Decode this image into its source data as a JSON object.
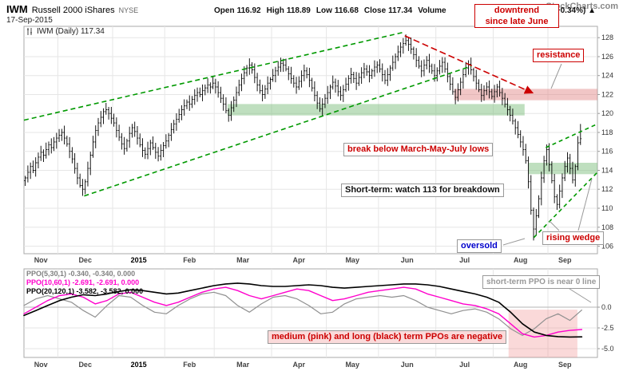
{
  "header": {
    "symbol": "IWM",
    "name": "Russell 2000 iShares",
    "exchange": "NYSE",
    "date": "17-Sep-2015",
    "watermark": "StockCharts.com",
    "quote": {
      "open_label": "Open",
      "open": "116.92",
      "high_label": "High",
      "high": "118.89",
      "low_label": "Low",
      "low": "116.68",
      "close_label": "Close",
      "close": "117.34",
      "volume_label": "Volume",
      "chg_pct": "(+0.34%)",
      "chg_arrow": "▲"
    }
  },
  "price_panel": {
    "label": "IWM (Daily) 117.34",
    "y_ticks": [
      128,
      126,
      124,
      122,
      120,
      118,
      116,
      114,
      112,
      110,
      108,
      106
    ]
  },
  "ppo_panel": {
    "y_ticks": [
      "0.0",
      "-2.5",
      "-5.0"
    ],
    "legend": [
      {
        "text": "PPO(5,30,1) -0.340, -0.340, 0.000",
        "color": "#808080"
      },
      {
        "text": "PPO(10,60,1) -2.691, -2.691, 0.000",
        "color": "#ff00cc"
      },
      {
        "text": "PPO(20,120,1) -3.582, -3.582, 0.000",
        "color": "#000000"
      }
    ]
  },
  "annotations": {
    "downtrend": [
      "downtrend",
      "since late June"
    ],
    "resistance": "resistance",
    "break_below": "break below March-May-July lows",
    "watch113": "Short-term: watch 113 for breakdown",
    "oversold": "oversold",
    "rising_wedge": "rising wedge",
    "ppo_note": "short-term PPO is near 0 line",
    "ppos_negative": "medium (pink) and long (black) term PPOs are negative"
  },
  "chart_data": {
    "type": "bar",
    "subtype": "ohlc-daily-with-ppo",
    "title": "IWM (Daily) 117.34",
    "x_months": [
      {
        "label": "Nov",
        "bars": 13
      },
      {
        "label": "Dec",
        "bars": 21
      },
      {
        "label": "2015",
        "bars": 20
      },
      {
        "label": "Feb",
        "bars": 19
      },
      {
        "label": "Mar",
        "bars": 22
      },
      {
        "label": "Apr",
        "bars": 21
      },
      {
        "label": "May",
        "bars": 20
      },
      {
        "label": "Jun",
        "bars": 22
      },
      {
        "label": "Jul",
        "bars": 22
      },
      {
        "label": "Aug",
        "bars": 21
      },
      {
        "label": "Sep",
        "bars": 13
      }
    ],
    "price": {
      "ylim": [
        105.2,
        129.2
      ],
      "total_slots": 220,
      "last_bar": {
        "open": 116.92,
        "high": 118.89,
        "low": 116.68,
        "close": 117.34
      },
      "closes": [
        113.2,
        113.8,
        114.4,
        114.0,
        114.8,
        115.4,
        115.9,
        115.6,
        116.2,
        116.7,
        116.4,
        117.0,
        117.4,
        117.7,
        118.0,
        117.4,
        116.8,
        116.0,
        115.2,
        114.2,
        113.2,
        112.4,
        112.0,
        112.8,
        114.2,
        115.6,
        117.0,
        118.2,
        119.0,
        119.6,
        120.2,
        120.4,
        120.0,
        119.5,
        119.0,
        118.2,
        117.5,
        116.8,
        116.3,
        117.1,
        117.9,
        118.5,
        118.1,
        117.4,
        116.7,
        116.1,
        115.7,
        116.3,
        116.9,
        116.4,
        115.9,
        115.5,
        116.1,
        116.6,
        117.1,
        117.7,
        118.3,
        118.9,
        119.4,
        119.9,
        120.4,
        120.8,
        121.2,
        121.0,
        121.5,
        121.9,
        122.2,
        122.0,
        122.4,
        122.7,
        123.0,
        122.8,
        123.2,
        122.8,
        122.2,
        121.6,
        121.0,
        120.3,
        119.8,
        120.6,
        121.4,
        122.2,
        123.0,
        123.7,
        124.3,
        124.8,
        125.1,
        124.6,
        123.8,
        123.0,
        122.4,
        122.0,
        122.6,
        123.2,
        123.6,
        124.0,
        124.5,
        124.9,
        125.3,
        125.1,
        124.7,
        124.2,
        123.7,
        123.2,
        122.8,
        123.4,
        124.0,
        124.5,
        124.1,
        123.5,
        122.7,
        121.9,
        121.1,
        120.5,
        121.0,
        121.6,
        122.2,
        122.8,
        123.3,
        122.9,
        122.3,
        121.9,
        122.5,
        123.1,
        123.7,
        124.1,
        123.7,
        123.2,
        123.8,
        124.3,
        124.7,
        124.4,
        124.0,
        124.5,
        124.9,
        125.1,
        124.7,
        124.1,
        123.5,
        124.1,
        124.8,
        125.4,
        126.0,
        126.5,
        127.0,
        127.4,
        127.7,
        127.3,
        126.8,
        126.2,
        125.6,
        125.0,
        124.5,
        125.1,
        125.6,
        125.0,
        124.5,
        124.0,
        124.5,
        125.0,
        125.4,
        124.7,
        123.9,
        123.1,
        122.3,
        121.7,
        122.5,
        123.3,
        124.1,
        124.8,
        125.2,
        124.6,
        123.9,
        123.2,
        122.5,
        121.9,
        122.4,
        122.8,
        122.3,
        121.8,
        122.3,
        122.8,
        122.2,
        121.6,
        121.0,
        120.4,
        119.8,
        119.2,
        118.5,
        117.8,
        117.0,
        116.2,
        115.0,
        112.8,
        109.8,
        107.8,
        109.2,
        111.0,
        113.2,
        115.0,
        116.2,
        114.6,
        112.9,
        111.2,
        110.4,
        111.8,
        113.2,
        114.4,
        115.3,
        114.2,
        113.0,
        114.4,
        116.9,
        117.34
      ]
    },
    "overlays": {
      "zones": [
        {
          "name": "march-may-july-lows-support",
          "x1": 0.355,
          "x2": 0.873,
          "p1": 119.8,
          "p2": 121.0,
          "color": "#7fbf7f",
          "opacity": 0.5
        },
        {
          "name": "support-114",
          "x1": 0.88,
          "x2": 1.0,
          "p1": 113.6,
          "p2": 114.8,
          "color": "#7fbf7f",
          "opacity": 0.5
        },
        {
          "name": "resistance-122",
          "x1": 0.75,
          "x2": 1.0,
          "p1": 121.4,
          "p2": 122.6,
          "color": "#e08080",
          "opacity": 0.45
        }
      ],
      "lines": [
        {
          "name": "channel-upper",
          "x1": 0.0,
          "p1": 119.3,
          "x2": 0.664,
          "p2": 128.6,
          "color": "#009900",
          "dash": "6,4"
        },
        {
          "name": "channel-lower",
          "x1": 0.105,
          "p1": 111.3,
          "x2": 0.78,
          "p2": 125.0,
          "color": "#009900",
          "dash": "6,4"
        },
        {
          "name": "downtrend-line",
          "x1": 0.664,
          "p1": 128.2,
          "x2": 0.886,
          "p2": 122.2,
          "color": "#cc0000",
          "dash": "8,4",
          "arrow": true
        },
        {
          "name": "wedge-lower",
          "x1": 0.889,
          "p1": 106.9,
          "x2": 1.0,
          "p2": 113.8,
          "color": "#009900",
          "dash": "5,4"
        },
        {
          "name": "wedge-upper",
          "x1": 0.91,
          "p1": 116.4,
          "x2": 1.0,
          "p2": 118.9,
          "color": "#009900",
          "dash": "5,4"
        }
      ]
    },
    "ppo": {
      "ylim": [
        -6.06,
        4.62
      ],
      "grid_values": [
        0,
        -2.5,
        -5.0
      ],
      "region": {
        "name": "negative-ppo-highlight",
        "x1": 0.845,
        "x2": 0.965,
        "v1": -6.06,
        "v2": -0.3,
        "color": "#f08080",
        "opacity": 0.3
      },
      "series": [
        {
          "name": "PPO(5,30,1)",
          "color": "#909090",
          "width": 1.2,
          "last": -0.34,
          "values": [
            0.2,
            1.0,
            1.4,
            1.0,
            0.6,
            -0.4,
            -1.2,
            0.2,
            1.4,
            1.2,
            0.2,
            -0.6,
            -0.8,
            0.2,
            1.0,
            1.6,
            1.8,
            1.4,
            0.2,
            -0.6,
            0.4,
            1.2,
            1.4,
            1.0,
            0.2,
            -0.8,
            -0.6,
            0.4,
            1.0,
            1.2,
            1.4,
            1.2,
            1.4,
            0.8,
            0.0,
            -0.4,
            -0.8,
            -0.4,
            -0.2,
            -0.6,
            -1.4,
            -2.6,
            -3.4,
            -2.6,
            -1.4,
            -0.8,
            -1.6,
            -0.34
          ]
        },
        {
          "name": "PPO(10,60,1)",
          "color": "#ff00cc",
          "width": 1.4,
          "last": -2.691,
          "values": [
            -0.8,
            0.0,
            0.8,
            1.4,
            1.6,
            1.2,
            0.4,
            0.8,
            1.6,
            1.8,
            1.2,
            0.6,
            0.2,
            0.6,
            1.2,
            1.8,
            2.2,
            2.4,
            2.0,
            1.4,
            1.0,
            1.4,
            1.8,
            2.2,
            2.0,
            1.4,
            0.8,
            1.0,
            1.4,
            1.8,
            2.0,
            2.2,
            2.4,
            2.2,
            1.6,
            1.2,
            0.8,
            0.4,
            0.2,
            -0.2,
            -0.8,
            -2.0,
            -3.2,
            -3.6,
            -3.4,
            -3.0,
            -2.8,
            -2.69
          ]
        },
        {
          "name": "PPO(20,120,1)",
          "color": "#000000",
          "width": 1.6,
          "last": -3.582,
          "values": [
            -1.0,
            -0.4,
            0.2,
            0.8,
            1.2,
            1.5,
            1.4,
            1.6,
            1.9,
            2.1,
            2.0,
            1.8,
            1.6,
            1.7,
            2.0,
            2.3,
            2.6,
            2.8,
            2.9,
            2.8,
            2.6,
            2.5,
            2.5,
            2.6,
            2.7,
            2.6,
            2.4,
            2.3,
            2.4,
            2.5,
            2.6,
            2.7,
            2.8,
            2.8,
            2.7,
            2.5,
            2.2,
            1.9,
            1.6,
            1.2,
            0.6,
            -0.6,
            -2.0,
            -3.0,
            -3.4,
            -3.55,
            -3.6,
            -3.58
          ]
        }
      ]
    }
  }
}
